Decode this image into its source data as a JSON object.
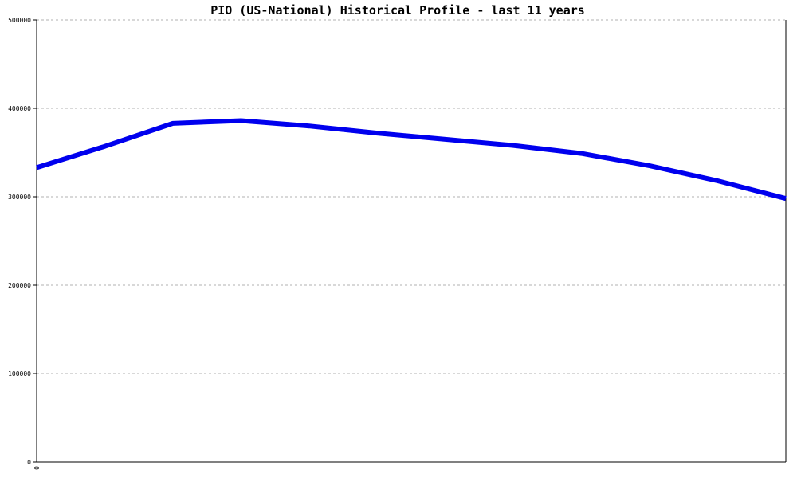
{
  "chart_data": {
    "type": "line",
    "title": "PIO (US-National) Historical Profile - last 11 years",
    "xlabel": "",
    "ylabel": "",
    "ylim": [
      0,
      500000
    ],
    "yticks": [
      "0",
      "100000",
      "200000",
      "300000",
      "400000",
      "500000"
    ],
    "xticks": [
      "0"
    ],
    "x": [
      0,
      1,
      2,
      3,
      4,
      5,
      6,
      7,
      8,
      9,
      10,
      11
    ],
    "series": [
      {
        "name": "",
        "color": "#0000ee",
        "values": [
          333000,
          357000,
          383000,
          386000,
          380000,
          372000,
          365000,
          358000,
          349000,
          335000,
          318000,
          298000
        ]
      }
    ],
    "grid": true,
    "legend": "none"
  }
}
